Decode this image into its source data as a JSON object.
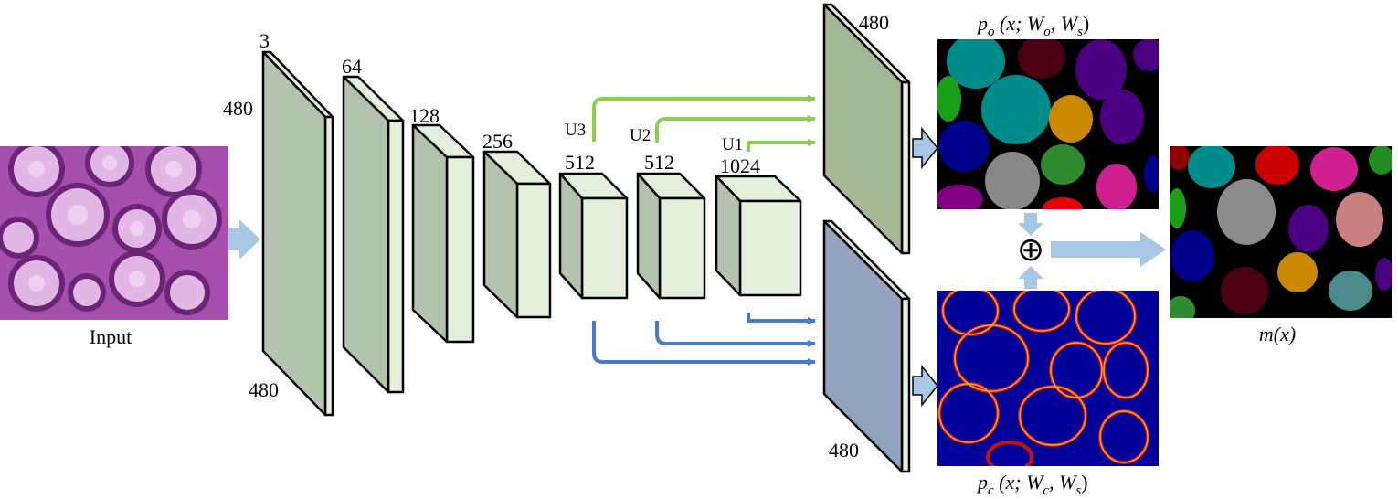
{
  "input_label": "Input",
  "encoder": {
    "input_dim_top": "3",
    "input_dim_side": "480",
    "input_dim_bottom": "480",
    "block1_channels": "64",
    "block2_channels": "128",
    "block3_channels": "256",
    "block4_channels": "512",
    "block5_channels": "512",
    "block6_channels": "1024"
  },
  "skip_labels": {
    "u3": "U3",
    "u2": "U2",
    "u1": "U1"
  },
  "object_branch": {
    "dim": "480",
    "formula_main": "p",
    "formula_sub": "o",
    "formula_args": " (x; W",
    "w1_sub": "o",
    "w2": ", W",
    "w2_sub": "s",
    "close": ")"
  },
  "contour_branch": {
    "dim": "480",
    "formula_main": "p",
    "formula_sub": "c",
    "formula_args": " (x; W",
    "w1_sub": "c",
    "w2": ", W",
    "w2_sub": "s",
    "close": ")"
  },
  "fusion_symbol": "⊕",
  "output_label": "m(x)",
  "colors": {
    "encoder_front": "#b3c3ad",
    "encoder_side": "#e4f0dc",
    "decoder_front": "#e4f0dc",
    "decoder_side": "#b3c3ad",
    "object_map": "#a6b796",
    "contour_map": "#92a3bd",
    "green_arrow": "#8ccf4e",
    "blue_arrow": "#4a79cc",
    "flow_arrow": "#a6c7e6"
  }
}
